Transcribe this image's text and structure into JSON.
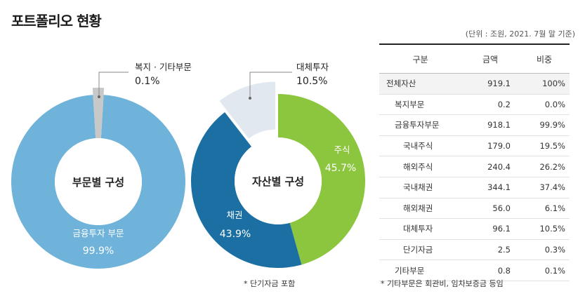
{
  "page": {
    "title": "포트폴리오 현황",
    "unit_note": "(단위 : 조원, 2021. 7월 말 기준)"
  },
  "chart_data": [
    {
      "type": "pie",
      "subtype": "donut",
      "center_label": "부문별 구성",
      "slices": [
        {
          "label": "금융투자 부문",
          "value": 99.9,
          "value_label": "99.9%",
          "color": "#6fb3da"
        },
        {
          "label": "복지 · 기타부문",
          "value": 0.1,
          "value_label": "0.1%",
          "color": "#c8c8c8"
        }
      ]
    },
    {
      "type": "pie",
      "subtype": "donut",
      "center_label": "자산별 구성",
      "slices": [
        {
          "label": "주식",
          "value": 45.7,
          "value_label": "45.7%",
          "color": "#8cc63f"
        },
        {
          "label": "채권",
          "value": 43.9,
          "value_label": "43.9%",
          "color": "#1b6fa3"
        },
        {
          "label": "대체투자",
          "value": 10.5,
          "value_label": "10.5%",
          "color": "#e1e8f0"
        }
      ],
      "footnote": "* 단기자금 포함"
    }
  ],
  "table": {
    "headers": [
      "구분",
      "금액",
      "비중"
    ],
    "rows": [
      {
        "name": "전체자산",
        "amount": "919.1",
        "ratio": "100%",
        "level": 0,
        "total": true
      },
      {
        "name": "복지부문",
        "amount": "0.2",
        "ratio": "0.0%",
        "level": 1
      },
      {
        "name": "금융투자부문",
        "amount": "918.1",
        "ratio": "99.9%",
        "level": 1
      },
      {
        "name": "국내주식",
        "amount": "179.0",
        "ratio": "19.5%",
        "level": 2
      },
      {
        "name": "해외주식",
        "amount": "240.4",
        "ratio": "26.2%",
        "level": 2
      },
      {
        "name": "국내채권",
        "amount": "344.1",
        "ratio": "37.4%",
        "level": 2
      },
      {
        "name": "해외채권",
        "amount": "56.0",
        "ratio": "6.1%",
        "level": 2
      },
      {
        "name": "대체투자",
        "amount": "96.1",
        "ratio": "10.5%",
        "level": 2
      },
      {
        "name": "단기자금",
        "amount": "2.5",
        "ratio": "0.3%",
        "level": 2
      },
      {
        "name": "기타부문",
        "amount": "0.8",
        "ratio": "0.1%",
        "level": 1
      }
    ],
    "footnote": "* 기타부문은 회관비, 임차보증금 등임"
  }
}
